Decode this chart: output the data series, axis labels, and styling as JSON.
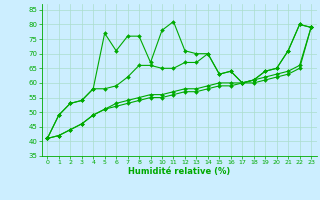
{
  "x": [
    0,
    1,
    2,
    3,
    4,
    5,
    6,
    7,
    8,
    9,
    10,
    11,
    12,
    13,
    14,
    15,
    16,
    17,
    18,
    19,
    20,
    21,
    22,
    23
  ],
  "line1": [
    41,
    49,
    53,
    54,
    58,
    77,
    71,
    76,
    76,
    67,
    78,
    81,
    71,
    70,
    70,
    63,
    64,
    60,
    61,
    64,
    65,
    71,
    80,
    79
  ],
  "line2": [
    41,
    49,
    53,
    54,
    58,
    58,
    59,
    62,
    66,
    66,
    65,
    65,
    67,
    67,
    70,
    63,
    64,
    60,
    61,
    64,
    65,
    71,
    80,
    79
  ],
  "line3": [
    41,
    42,
    44,
    46,
    49,
    51,
    52,
    53,
    54,
    55,
    55,
    56,
    57,
    57,
    58,
    59,
    59,
    60,
    60,
    61,
    62,
    63,
    65,
    79
  ],
  "line4": [
    41,
    42,
    44,
    46,
    49,
    51,
    53,
    54,
    55,
    56,
    56,
    57,
    58,
    58,
    59,
    60,
    60,
    60,
    61,
    62,
    63,
    64,
    66,
    79
  ],
  "xlim": [
    -0.5,
    23.5
  ],
  "ylim": [
    35,
    87
  ],
  "yticks": [
    35,
    40,
    45,
    50,
    55,
    60,
    65,
    70,
    75,
    80,
    85
  ],
  "xticks": [
    0,
    1,
    2,
    3,
    4,
    5,
    6,
    7,
    8,
    9,
    10,
    11,
    12,
    13,
    14,
    15,
    16,
    17,
    18,
    19,
    20,
    21,
    22,
    23
  ],
  "xlabel": "Humidité relative (%)",
  "line_color": "#00aa00",
  "bg_color": "#cceeff",
  "grid_color": "#aaddcc",
  "marker": "D",
  "markersize": 2.0,
  "tick_fontsize": 5.0,
  "xlabel_fontsize": 6.0
}
